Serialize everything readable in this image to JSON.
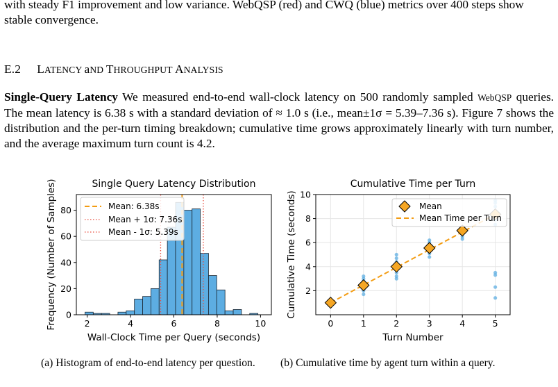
{
  "paragraph_top": "with steady F1 improvement and low variance. WebQSP (red) and CWQ (blue) metrics over 400 steps show stable convergence.",
  "section": {
    "number": "E.2",
    "title": "Latency and Throughput Analysis"
  },
  "body": {
    "lead": "Single-Query Latency",
    "text": [
      " We measured end-to-end wall-clock latency on 500 randomly sampled ",
      "WebQSP",
      " queries. The mean latency is 6.38 s with a standard deviation of ≈ 1.0 s (i.e., mean±1σ = 5.39–7.36 s). Figure 7 shows the distribution and the per-turn timing breakdown; cumulative time grows approximately linearly with turn number, and the average maximum turn count is 4.2."
    ]
  },
  "captions": {
    "a": "(a) Histogram of end-to-end latency per question.",
    "b": "(b) Cumulative time by agent turn within a query."
  },
  "colors": {
    "bar_fill": "#5dade2",
    "bar_edge": "#1b2631",
    "mean_line": "#f39c12",
    "sigma_line": "#e74c3c",
    "marker_fill": "#f5a623",
    "dot": "#5dade2"
  },
  "chart_data": [
    {
      "type": "bar",
      "title": "Single Query Latency Distribution",
      "xlabel": "Wall-Clock Time per Query (seconds)",
      "ylabel": "Frequency (Number of Samples)",
      "xlim": [
        1.5,
        10.5
      ],
      "ylim": [
        0,
        92
      ],
      "xticks": [
        "2",
        "4",
        "6",
        "8",
        "10"
      ],
      "yticks": [
        "0",
        "20",
        "40",
        "60",
        "80"
      ],
      "bin_width": 0.38,
      "bins": [
        {
          "x": 1.9,
          "v": 2
        },
        {
          "x": 2.28,
          "v": 1
        },
        {
          "x": 2.66,
          "v": 1
        },
        {
          "x": 3.42,
          "v": 2
        },
        {
          "x": 3.8,
          "v": 3
        },
        {
          "x": 4.18,
          "v": 12
        },
        {
          "x": 4.56,
          "v": 14
        },
        {
          "x": 4.94,
          "v": 20
        },
        {
          "x": 5.32,
          "v": 42
        },
        {
          "x": 5.7,
          "v": 67
        },
        {
          "x": 6.08,
          "v": 86
        },
        {
          "x": 6.46,
          "v": 80
        },
        {
          "x": 6.84,
          "v": 81
        },
        {
          "x": 7.22,
          "v": 47
        },
        {
          "x": 7.6,
          "v": 30
        },
        {
          "x": 7.98,
          "v": 19
        },
        {
          "x": 8.36,
          "v": 3
        },
        {
          "x": 8.74,
          "v": 4
        },
        {
          "x": 9.5,
          "v": 1
        }
      ],
      "mean": 6.38,
      "mean_plus_sigma": 7.36,
      "mean_minus_sigma": 5.39,
      "legend": [
        "Mean: 6.38s",
        "Mean + 1σ: 7.36s",
        "Mean - 1σ: 5.39s"
      ],
      "legend_position": "upper-left"
    },
    {
      "type": "scatter",
      "title": "Cumulative Time per Turn",
      "xlabel": "Turn Number",
      "ylabel": "Cumulative Time (seconds)",
      "xlim": [
        -0.45,
        5.45
      ],
      "ylim": [
        0,
        10
      ],
      "xticks": [
        "0",
        "1",
        "2",
        "3",
        "4",
        "5"
      ],
      "yticks": [
        "2",
        "4",
        "6",
        "8",
        "10"
      ],
      "samples": [
        {
          "x": 1,
          "ys": [
            1.7,
            2.0,
            2.2,
            2.5,
            2.8,
            3.0,
            3.2
          ]
        },
        {
          "x": 2,
          "ys": [
            3.0,
            3.2,
            3.5,
            3.8,
            4.1,
            4.4,
            4.7,
            5.0
          ]
        },
        {
          "x": 3,
          "ys": [
            4.8,
            5.1,
            5.3,
            5.7,
            6.0,
            6.2
          ]
        },
        {
          "x": 4,
          "ys": [
            6.3,
            6.5,
            6.8,
            7.0,
            7.2
          ]
        },
        {
          "x": 5,
          "ys": [
            1.4,
            2.3,
            3.3,
            3.5,
            7.5,
            7.9,
            8.3,
            8.6,
            9.0,
            9.3,
            9.5
          ]
        }
      ],
      "means": [
        {
          "x": 0,
          "y": 1.0
        },
        {
          "x": 1,
          "y": 2.45
        },
        {
          "x": 2,
          "y": 4.0
        },
        {
          "x": 3,
          "y": 5.55
        },
        {
          "x": 4,
          "y": 7.0
        },
        {
          "x": 5,
          "y": 8.35
        }
      ],
      "trend": [
        {
          "x": 0,
          "y": 1.0
        },
        {
          "x": 5,
          "y": 8.35
        }
      ],
      "legend": [
        "Mean",
        "Mean Time per Turn"
      ],
      "legend_position": "upper-right"
    }
  ]
}
